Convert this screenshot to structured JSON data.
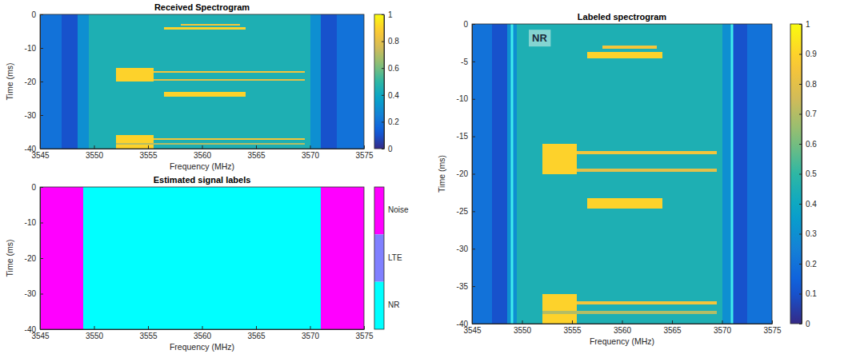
{
  "chart_data": [
    {
      "type": "heatmap",
      "title": "Received Spectrogram",
      "x_label": "Frequency (MHz)",
      "y_label": "Time (ms)",
      "xlim": [
        3545,
        3575
      ],
      "xticks": [
        3545,
        3550,
        3555,
        3560,
        3565,
        3570,
        3575
      ],
      "ylim": [
        -40,
        0
      ],
      "yticks": [
        -40,
        -30,
        -20,
        -10,
        0
      ],
      "cells": [
        {
          "x": [
            3545,
            3547
          ],
          "y": [
            -40,
            0
          ],
          "value": 0.2
        },
        {
          "x": [
            3547,
            3548.5
          ],
          "y": [
            -40,
            0
          ],
          "value": 0.1
        },
        {
          "x": [
            3548.5,
            3549.5
          ],
          "y": [
            -40,
            0
          ],
          "value": 0.3
        },
        {
          "x": [
            3549.5,
            3570
          ],
          "y": [
            -40,
            0
          ],
          "value": 0.45
        },
        {
          "x": [
            3570,
            3571
          ],
          "y": [
            -40,
            0
          ],
          "value": 0.3
        },
        {
          "x": [
            3571,
            3572.5
          ],
          "y": [
            -40,
            0
          ],
          "value": 0.1
        },
        {
          "x": [
            3572.5,
            3575
          ],
          "y": [
            -40,
            0
          ],
          "value": 0.2
        },
        {
          "x": [
            3558,
            3563.5
          ],
          "y": [
            -3.3,
            -2.9
          ],
          "value": 0.85
        },
        {
          "x": [
            3556.5,
            3564
          ],
          "y": [
            -4.6,
            -3.7
          ],
          "value": 0.9
        },
        {
          "x": [
            3552,
            3555.5
          ],
          "y": [
            -20,
            -16
          ],
          "value": 0.9
        },
        {
          "x": [
            3555.5,
            3569.5
          ],
          "y": [
            -17.4,
            -17
          ],
          "value": 0.85
        },
        {
          "x": [
            3555.5,
            3569.5
          ],
          "y": [
            -19.7,
            -19.3
          ],
          "value": 0.8
        },
        {
          "x": [
            3556.5,
            3564
          ],
          "y": [
            -24.6,
            -23.2
          ],
          "value": 0.9
        },
        {
          "x": [
            3552,
            3555.5
          ],
          "y": [
            -40,
            -36
          ],
          "value": 0.9
        },
        {
          "x": [
            3555.5,
            3569.5
          ],
          "y": [
            -37.4,
            -37
          ],
          "value": 0.85
        },
        {
          "x": [
            3552,
            3569.5
          ],
          "y": [
            -38.7,
            -38.3
          ],
          "value": 0.7
        }
      ],
      "colorbar": {
        "range": [
          0,
          1
        ],
        "ticks": [
          0,
          0.2,
          0.4,
          0.6,
          0.8,
          1
        ]
      }
    },
    {
      "type": "label_map",
      "title": "Estimated signal labels",
      "x_label": "Frequency (MHz)",
      "y_label": "Time (ms)",
      "xlim": [
        3545,
        3575
      ],
      "xticks": [
        3545,
        3550,
        3555,
        3560,
        3565,
        3570,
        3575
      ],
      "ylim": [
        -40,
        0
      ],
      "yticks": [
        -40,
        -30,
        -20,
        -10,
        0
      ],
      "cells": [
        {
          "x": [
            3545,
            3549
          ],
          "y": [
            -40,
            0
          ],
          "label": "Noise"
        },
        {
          "x": [
            3549,
            3571
          ],
          "y": [
            -40,
            0
          ],
          "label": "NR"
        },
        {
          "x": [
            3571,
            3575
          ],
          "y": [
            -40,
            0
          ],
          "label": "Noise"
        }
      ],
      "classes": [
        "Noise",
        "LTE",
        "NR"
      ],
      "colors": [
        "#ff00ff",
        "#8080ff",
        "#00ffff"
      ]
    },
    {
      "type": "heatmap",
      "title": "Labeled spectrogram",
      "x_label": "Frequency (MHz)",
      "y_label": "Time (ms)",
      "xlim": [
        3545,
        3575
      ],
      "xticks": [
        3545,
        3550,
        3555,
        3560,
        3565,
        3570,
        3575
      ],
      "ylim": [
        -40,
        0
      ],
      "yticks": [
        -40,
        -35,
        -30,
        -25,
        -20,
        -15,
        -10,
        -5,
        0
      ],
      "cells": [
        {
          "x": [
            3545,
            3547
          ],
          "y": [
            -40,
            0
          ],
          "value": 0.2
        },
        {
          "x": [
            3547,
            3548.5
          ],
          "y": [
            -40,
            0
          ],
          "value": 0.1
        },
        {
          "x": [
            3548.5,
            3549.5
          ],
          "y": [
            -40,
            0
          ],
          "value": 0.3
        },
        {
          "x": [
            3549.5,
            3570
          ],
          "y": [
            -40,
            0
          ],
          "value": 0.45
        },
        {
          "x": [
            3570,
            3571
          ],
          "y": [
            -40,
            0
          ],
          "value": 0.3
        },
        {
          "x": [
            3571,
            3572.5
          ],
          "y": [
            -40,
            0
          ],
          "value": 0.1
        },
        {
          "x": [
            3572.5,
            3575
          ],
          "y": [
            -40,
            0
          ],
          "value": 0.2
        },
        {
          "x": [
            3558,
            3563.5
          ],
          "y": [
            -3.3,
            -2.9
          ],
          "value": 0.85
        },
        {
          "x": [
            3556.5,
            3564
          ],
          "y": [
            -4.6,
            -3.7
          ],
          "value": 0.9
        },
        {
          "x": [
            3552,
            3555.5
          ],
          "y": [
            -20,
            -16
          ],
          "value": 0.9
        },
        {
          "x": [
            3555.5,
            3569.5
          ],
          "y": [
            -17.4,
            -17
          ],
          "value": 0.85
        },
        {
          "x": [
            3555.5,
            3569.5
          ],
          "y": [
            -19.7,
            -19.3
          ],
          "value": 0.8
        },
        {
          "x": [
            3556.5,
            3564
          ],
          "y": [
            -24.6,
            -23.2
          ],
          "value": 0.9
        },
        {
          "x": [
            3552,
            3555.5
          ],
          "y": [
            -40,
            -36
          ],
          "value": 0.9
        },
        {
          "x": [
            3555.5,
            3569.5
          ],
          "y": [
            -37.4,
            -37
          ],
          "value": 0.85
        },
        {
          "x": [
            3552,
            3569.5
          ],
          "y": [
            -38.7,
            -38.3
          ],
          "value": 0.7
        }
      ],
      "boundaries": [
        3549,
        3571
      ],
      "annotations": [
        {
          "text": "NR",
          "x": 3551,
          "y": -2
        }
      ],
      "colorbar": {
        "range": [
          0,
          1
        ],
        "ticks": [
          0,
          0.1,
          0.2,
          0.3,
          0.4,
          0.5,
          0.6,
          0.7,
          0.8,
          0.9,
          1
        ]
      }
    }
  ]
}
